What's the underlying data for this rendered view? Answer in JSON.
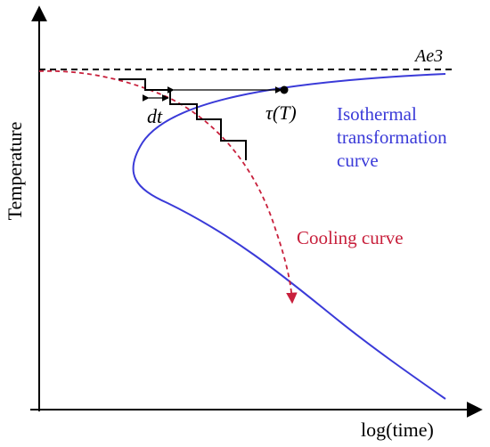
{
  "axes": {
    "xlabel": "log(time)",
    "ylabel": "Temperature"
  },
  "labels": {
    "ae3": "Ae3",
    "dt": "dt",
    "tau": "τ(T)",
    "isothermal_line1": "Isothermal",
    "isothermal_line2": "transformation",
    "isothermal_line3": "curve",
    "cooling": "Cooling curve"
  },
  "colors": {
    "isothermal_curve": "#3a3ad8",
    "cooling_curve": "#c8203c",
    "axes": "#000000",
    "ae3_line": "#000000"
  }
}
